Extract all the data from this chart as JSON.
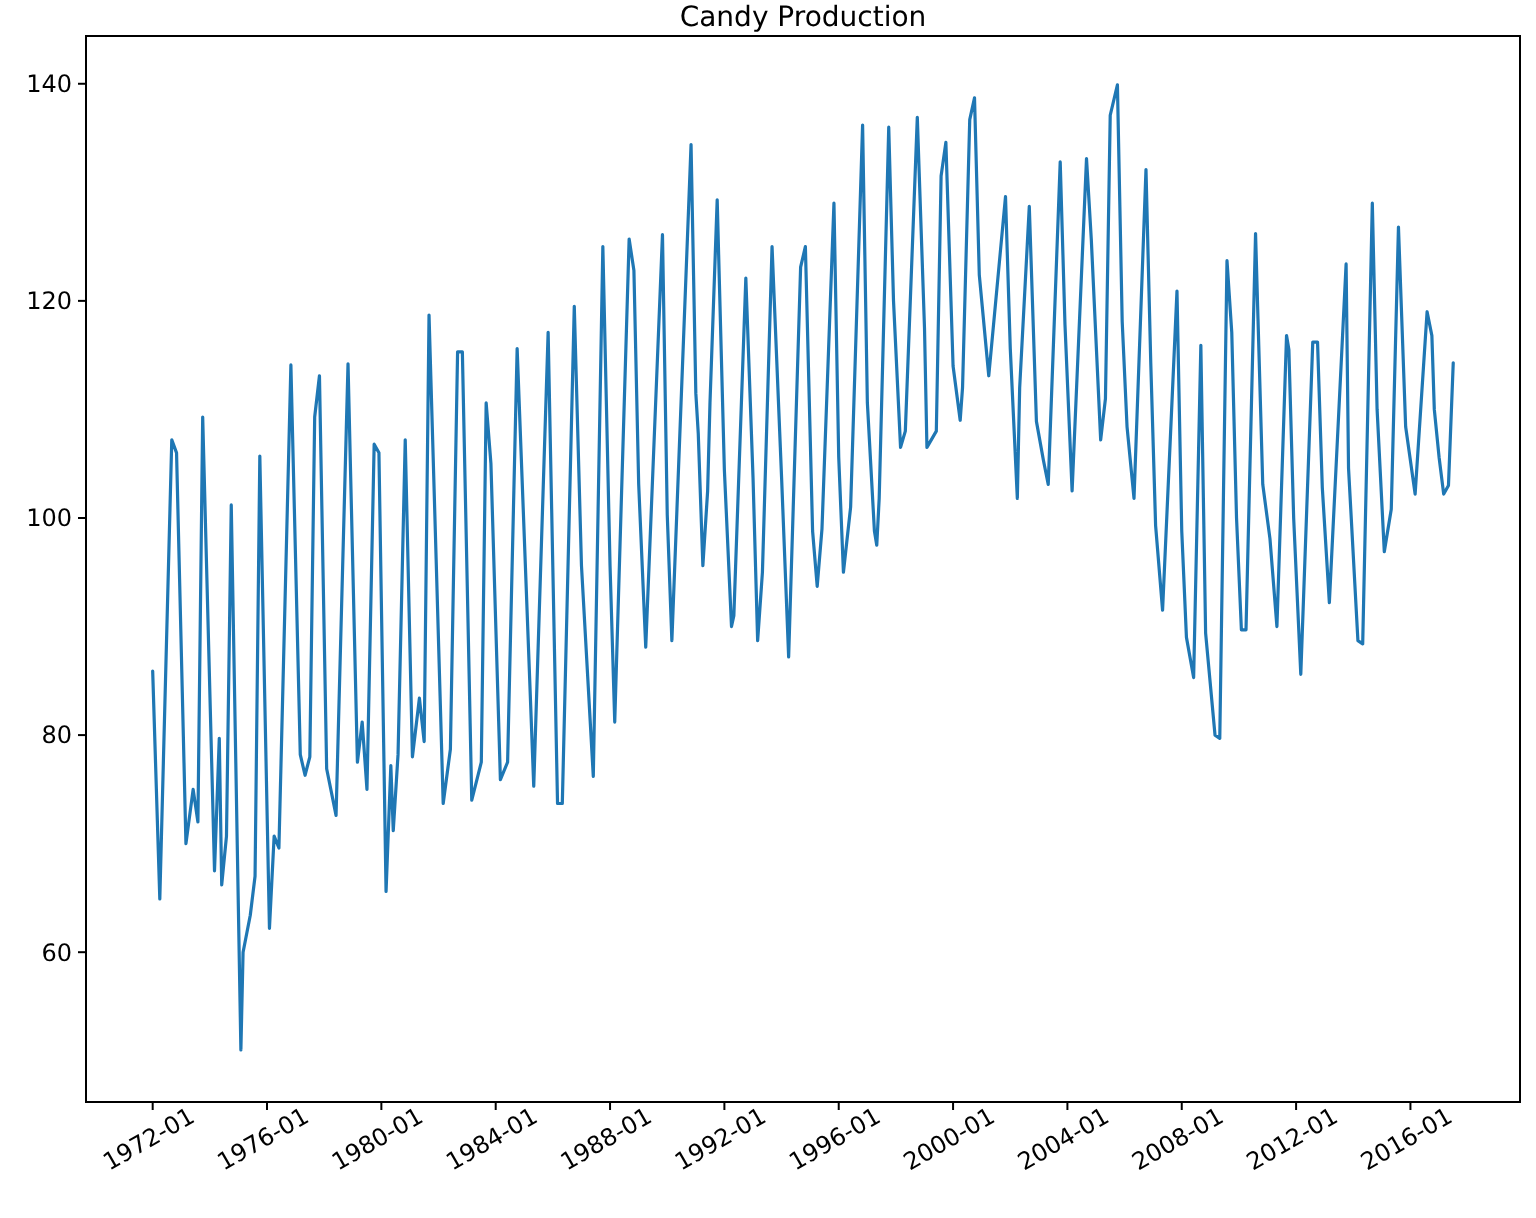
{
  "chart_data": {
    "type": "line",
    "title": "Candy Production",
    "xlim": [
      "1969-09",
      "2019-11"
    ],
    "xticks": [
      "1972-01",
      "1976-01",
      "1980-01",
      "1984-01",
      "1988-01",
      "1992-01",
      "1996-01",
      "2000-01",
      "2004-01",
      "2008-01",
      "2012-01",
      "2016-01"
    ],
    "ylim": [
      46.2,
      144.4
    ],
    "yticks": [
      60,
      80,
      100,
      120,
      140
    ],
    "grid": false,
    "marker": "none",
    "line_style": "solid",
    "series": [
      {
        "color": "#1f77b4",
        "x": [
          "1972-01",
          "1972-04",
          "1972-09",
          "1972-11",
          "1973-03",
          "1973-06",
          "1973-08",
          "1973-10",
          "1974-03",
          "1974-05",
          "1974-06",
          "1974-08",
          "1974-10",
          "1975-02",
          "1975-03",
          "1975-06",
          "1975-08",
          "1975-10",
          "1976-02",
          "1976-04",
          "1976-06",
          "1976-11",
          "1977-03",
          "1977-05",
          "1977-07",
          "1977-09",
          "1977-11",
          "1978-02",
          "1978-06",
          "1978-11",
          "1979-03",
          "1979-05",
          "1979-07",
          "1979-10",
          "1979-12",
          "1980-03",
          "1980-05",
          "1980-06",
          "1980-08",
          "1980-11",
          "1981-02",
          "1981-05",
          "1981-07",
          "1981-09",
          "1981-12",
          "1982-03",
          "1982-06",
          "1982-09",
          "1982-11",
          "1983-03",
          "1983-07",
          "1983-09",
          "1983-11",
          "1984-03",
          "1984-06",
          "1984-10",
          "1985-05",
          "1985-11",
          "1986-03",
          "1986-05",
          "1986-10",
          "1987-01",
          "1987-06",
          "1987-10",
          "1988-01",
          "1988-03",
          "1988-09",
          "1988-11",
          "1989-01",
          "1989-04",
          "1989-11",
          "1990-01",
          "1990-03",
          "1990-11",
          "1991-01",
          "1991-02",
          "1991-04",
          "1991-06",
          "1991-07",
          "1991-10",
          "1992-01",
          "1992-04",
          "1992-05",
          "1992-10",
          "1993-01",
          "1993-03",
          "1993-05",
          "1993-09",
          "1994-01",
          "1994-04",
          "1994-09",
          "1994-11",
          "1995-02",
          "1995-04",
          "1995-06",
          "1995-11",
          "1996-01",
          "1996-03",
          "1996-06",
          "1996-11",
          "1997-01",
          "1997-04",
          "1997-05",
          "1997-06",
          "1997-10",
          "1997-12",
          "1998-03",
          "1998-05",
          "1998-10",
          "1999-01",
          "1999-02",
          "1999-06",
          "1999-08",
          "1999-10",
          "2000-01",
          "2000-04",
          "2000-05",
          "2000-08",
          "2000-10",
          "2000-12",
          "2001-04",
          "2001-11",
          "2002-01",
          "2002-04",
          "2002-05",
          "2002-09",
          "2002-12",
          "2003-03",
          "2003-05",
          "2003-10",
          "2003-12",
          "2004-03",
          "2004-09",
          "2004-11",
          "2005-03",
          "2005-05",
          "2005-07",
          "2005-10",
          "2005-12",
          "2006-02",
          "2006-05",
          "2006-10",
          "2006-12",
          "2007-02",
          "2007-05",
          "2007-11",
          "2008-01",
          "2008-03",
          "2008-06",
          "2008-09",
          "2008-11",
          "2009-03",
          "2009-05",
          "2009-08",
          "2009-10",
          "2009-12",
          "2010-02",
          "2010-04",
          "2010-08",
          "2010-09",
          "2010-11",
          "2011-02",
          "2011-05",
          "2011-09",
          "2011-10",
          "2011-12",
          "2012-03",
          "2012-08",
          "2012-10",
          "2012-12",
          "2013-03",
          "2013-10",
          "2013-11",
          "2014-03",
          "2014-05",
          "2014-09",
          "2014-11",
          "2015-02",
          "2015-05",
          "2015-08",
          "2015-11",
          "2016-03",
          "2016-08",
          "2016-10",
          "2016-11",
          "2017-01",
          "2017-03",
          "2017-05",
          "2017-07"
        ],
        "values": [
          85.9,
          64.9,
          107.2,
          106,
          70,
          75,
          72,
          109.3,
          67.5,
          79.7,
          66.2,
          70.7,
          101.2,
          51,
          60,
          63.4,
          67,
          105.7,
          62.2,
          70.7,
          69.6,
          114.1,
          78.2,
          76.3,
          78,
          109.3,
          113.1,
          76.9,
          72.6,
          114.2,
          77.5,
          81.2,
          75,
          106.8,
          106,
          65.6,
          77.2,
          71.2,
          78.2,
          107.2,
          78,
          83.4,
          79.4,
          118.7,
          96.2,
          73.7,
          78.7,
          115.3,
          115.3,
          74,
          77.5,
          110.6,
          105,
          75.9,
          77.5,
          115.6,
          75.3,
          117.1,
          73.7,
          73.7,
          119.5,
          95.6,
          76.2,
          125,
          95.6,
          81.2,
          125.7,
          122.8,
          103.1,
          88.1,
          126.1,
          100.3,
          88.7,
          134.4,
          111.5,
          107.8,
          95.6,
          102.5,
          110.6,
          129.3,
          104.4,
          90,
          91,
          122.1,
          103.7,
          88.7,
          95,
          125,
          103.7,
          87.2,
          123.1,
          125,
          98.8,
          93.7,
          99,
          129,
          105.6,
          95,
          101,
          136.2,
          110.6,
          98.8,
          97.5,
          101.8,
          136,
          120,
          106.5,
          108,
          136.9,
          117.5,
          106.5,
          108,
          131.5,
          134.6,
          114,
          109,
          112,
          136.7,
          138.7,
          122.4,
          113.1,
          129.6,
          115.6,
          101.8,
          112,
          128.7,
          108.9,
          105.3,
          103.1,
          132.8,
          117.8,
          102.5,
          133.1,
          125.7,
          107.2,
          111,
          137.1,
          139.9,
          118.1,
          108.4,
          101.8,
          132.1,
          114.3,
          99.3,
          91.5,
          120.9,
          98.8,
          89,
          85.3,
          115.9,
          89.4,
          80,
          79.7,
          123.7,
          117.1,
          100,
          89.7,
          89.7,
          126.2,
          118.4,
          103.1,
          98.1,
          90,
          116.8,
          115.5,
          100,
          85.6,
          116.2,
          116.2,
          102.8,
          92.2,
          123.4,
          104.6,
          88.7,
          88.4,
          129,
          110,
          96.9,
          100.8,
          126.8,
          108.4,
          102.2,
          119,
          116.8,
          110,
          105.6,
          102.2,
          103,
          114.3
        ]
      }
    ]
  }
}
